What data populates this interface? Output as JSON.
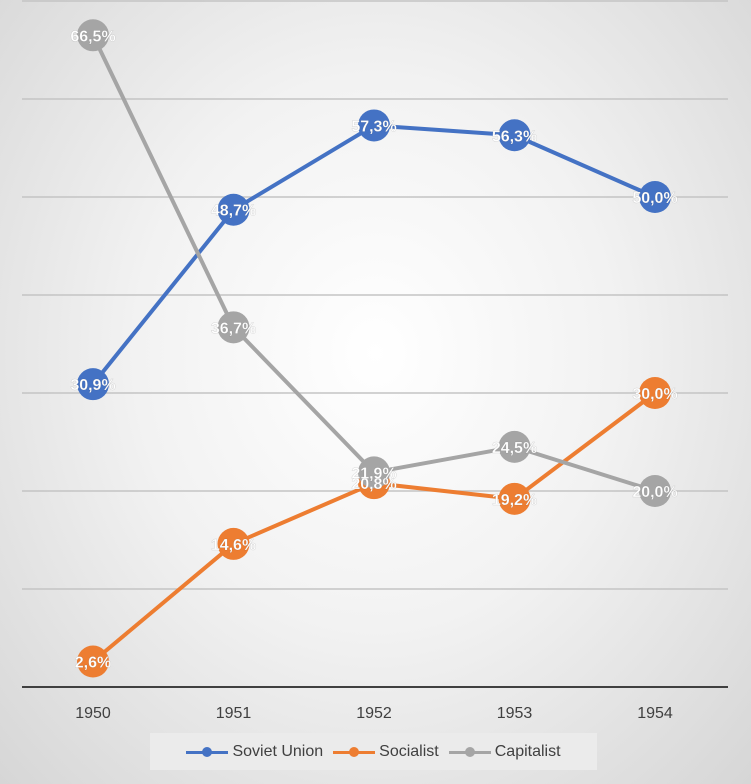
{
  "chart_data": {
    "type": "line",
    "categories": [
      "1950",
      "1951",
      "1952",
      "1953",
      "1954"
    ],
    "ylim": [
      0,
      70
    ],
    "grid": true,
    "legend_position": "bottom",
    "series": [
      {
        "name": "Soviet Union",
        "color": "#4472C4",
        "values": [
          30.9,
          48.7,
          57.3,
          56.3,
          50.0
        ],
        "labels": [
          "30,9%",
          "48,7%",
          "57,3%",
          "56,3%",
          "50,0%"
        ]
      },
      {
        "name": "Socialist",
        "color": "#ED7D31",
        "values": [
          2.6,
          14.6,
          20.8,
          19.2,
          30.0
        ],
        "labels": [
          "2,6%",
          "14,6%",
          "20,8%",
          "19,2%",
          "30,0%"
        ]
      },
      {
        "name": "Capitalist",
        "color": "#A5A5A5",
        "values": [
          66.5,
          36.7,
          21.9,
          24.5,
          20.0
        ],
        "labels": [
          "66,5%",
          "36,7%",
          "21,9%",
          "24,5%",
          "20,0%"
        ]
      }
    ]
  }
}
